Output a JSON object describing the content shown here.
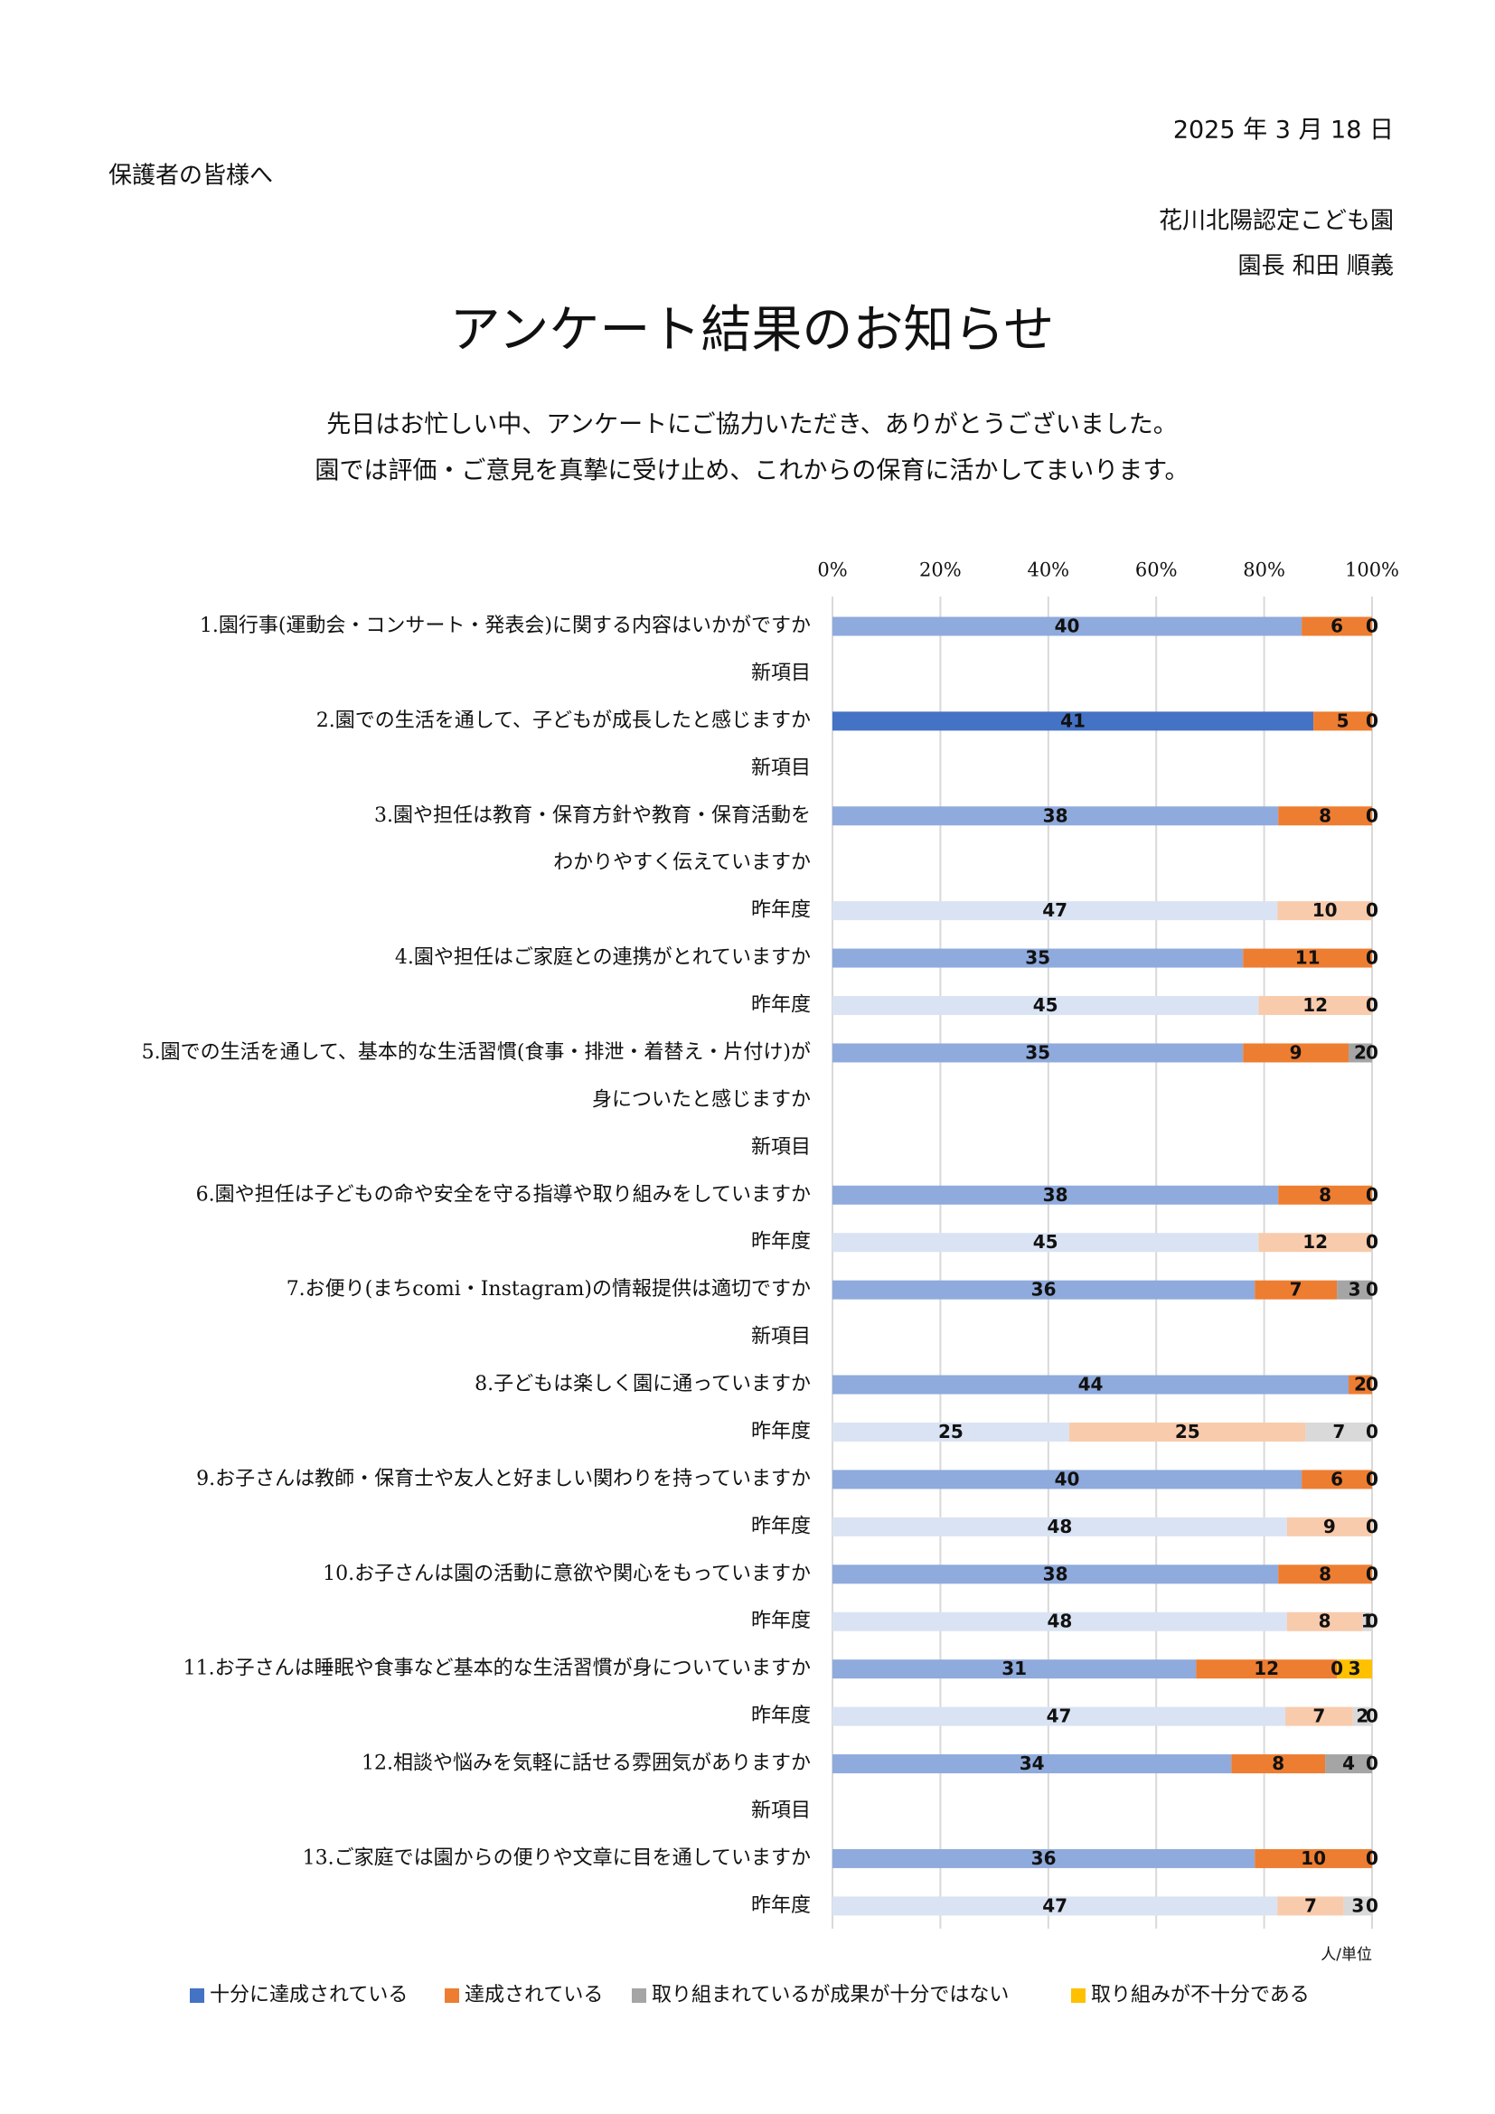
{
  "header": {
    "date": "2025 年 3 月 18 日",
    "recipient": "保護者の皆様へ",
    "organization": "花川北陽認定こども園",
    "principal": "園長 和田 順義",
    "title": "アンケート結果のお知らせ",
    "message": [
      "先日はお忙しい中、アンケートにご協力いただき、ありがとうございました。",
      "園では評価・ご意見を真摯に受け止め、これからの保育に活かしてまいります。"
    ]
  },
  "chart_data": {
    "type": "stacked_bar_100",
    "orientation": "horizontal",
    "categories": [
      "1.園行事(運動会・コンサート・発表会)に関する内容はいかがですか",
      "新項目",
      "2.園での生活を通して、子どもが成長したと感じますか",
      "新項目",
      "3.園や担任は教育・保育方針や教育・保育活動を",
      "わかりやすく伝えていますか",
      "昨年度",
      "4.園や担任はご家庭との連携がとれていますか",
      "昨年度",
      "5.園での生活を通して、基本的な生活習慣(食事・排泄・着替え・片付け)が",
      "身についたと感じますか",
      "新項目",
      "6.園や担任は子どもの命や安全を守る指導や取り組みをしていますか",
      "昨年度",
      "7.お便り(まちcomi・Instagram)の情報提供は適切ですか",
      "新項目",
      "8.子どもは楽しく園に通っていますか",
      "昨年度",
      "9.お子さんは教師・保育士や友人と好ましい関わりを持っていますか",
      "昨年度",
      "10.お子さんは園の活動に意欲や関心をもっていますか",
      "昨年度",
      "11.お子さんは睡眠や食事など基本的な生活習慣が身についていますか",
      "昨年度",
      "12.相談や悩みを気軽に話せる雰囲気がありますか",
      "新項目",
      "13.ご家庭では園からの便りや文章に目を通していますか",
      "昨年度"
    ],
    "series": [
      {
        "name": "十分に達成されている",
        "color": "#4472c4",
        "values": [
          40,
          null,
          41,
          null,
          38,
          null,
          47,
          35,
          45,
          35,
          null,
          null,
          38,
          45,
          36,
          null,
          44,
          25,
          40,
          48,
          38,
          48,
          31,
          47,
          34,
          null,
          36,
          47
        ],
        "colors": [
          "#8faadc",
          null,
          "#4472c4",
          null,
          "#8faadc",
          null,
          "#dae3f3",
          "#8faadc",
          "#dae3f3",
          "#8faadc",
          null,
          null,
          "#8faadc",
          "#dae3f3",
          "#8faadc",
          null,
          "#8faadc",
          "#dae3f3",
          "#8faadc",
          "#dae3f3",
          "#8faadc",
          "#dae3f3",
          "#8faadc",
          "#dae3f3",
          "#8faadc",
          null,
          "#8faadc",
          "#dae3f3"
        ]
      },
      {
        "name": "達成されている",
        "color": "#ed7d31",
        "values": [
          6,
          null,
          5,
          null,
          8,
          null,
          10,
          11,
          12,
          9,
          null,
          null,
          8,
          12,
          7,
          null,
          2,
          25,
          6,
          9,
          8,
          8,
          12,
          7,
          8,
          null,
          10,
          7
        ],
        "colors": [
          "#ed7d31",
          null,
          "#ed7d31",
          null,
          "#ed7d31",
          null,
          "#f8cbad",
          "#ed7d31",
          "#f8cbad",
          "#ed7d31",
          null,
          null,
          "#ed7d31",
          "#f8cbad",
          "#ed7d31",
          null,
          "#ed7d31",
          "#f8cbad",
          "#ed7d31",
          "#f8cbad",
          "#ed7d31",
          "#f8cbad",
          "#ed7d31",
          "#f8cbad",
          "#ed7d31",
          null,
          "#ed7d31",
          "#f8cbad"
        ]
      },
      {
        "name": "取り組まれているが成果が十分ではない",
        "color": "#a5a5a5",
        "values": [
          0,
          null,
          0,
          null,
          0,
          null,
          0,
          0,
          0,
          2,
          null,
          null,
          0,
          0,
          3,
          null,
          0,
          7,
          0,
          0,
          0,
          1,
          0,
          2,
          4,
          null,
          0,
          3
        ],
        "colors": [
          "#a5a5a5",
          null,
          "#a5a5a5",
          null,
          "#a5a5a5",
          null,
          "#d9d9d9",
          "#a5a5a5",
          "#d9d9d9",
          "#a5a5a5",
          null,
          null,
          "#a5a5a5",
          "#d9d9d9",
          "#a5a5a5",
          null,
          "#a5a5a5",
          "#d9d9d9",
          "#a5a5a5",
          "#d9d9d9",
          "#a5a5a5",
          "#d9d9d9",
          "#a5a5a5",
          "#d9d9d9",
          "#a5a5a5",
          null,
          "#a5a5a5",
          "#d9d9d9"
        ]
      },
      {
        "name": "取り組みが不十分である",
        "color": "#ffc000",
        "values": [
          0,
          null,
          0,
          null,
          0,
          null,
          0,
          0,
          0,
          0,
          null,
          null,
          0,
          0,
          0,
          null,
          0,
          0,
          0,
          0,
          0,
          0,
          3,
          0,
          0,
          null,
          0,
          0
        ],
        "colors": [
          "#ffc000",
          null,
          "#ffc000",
          null,
          "#ffc000",
          null,
          "#ffe699",
          "#ffc000",
          "#ffe699",
          "#ffc000",
          null,
          null,
          "#ffc000",
          "#ffe699",
          "#ffc000",
          null,
          "#ffc000",
          "#ffe699",
          "#ffc000",
          "#ffe699",
          "#ffc000",
          "#ffe699",
          "#ffc000",
          "#ffe699",
          "#ffc000",
          null,
          "#ffc000",
          "#ffe699"
        ]
      }
    ],
    "xlim": [
      0,
      100
    ],
    "xticks": [
      {
        "value": 0,
        "label": "0%"
      },
      {
        "value": 20,
        "label": "20%"
      },
      {
        "value": 40,
        "label": "40%"
      },
      {
        "value": 60,
        "label": "60%"
      },
      {
        "value": 80,
        "label": "80%"
      },
      {
        "value": 100,
        "label": "100%"
      }
    ],
    "grid": true,
    "legend": "bottom",
    "unit_label": "人/単位"
  }
}
